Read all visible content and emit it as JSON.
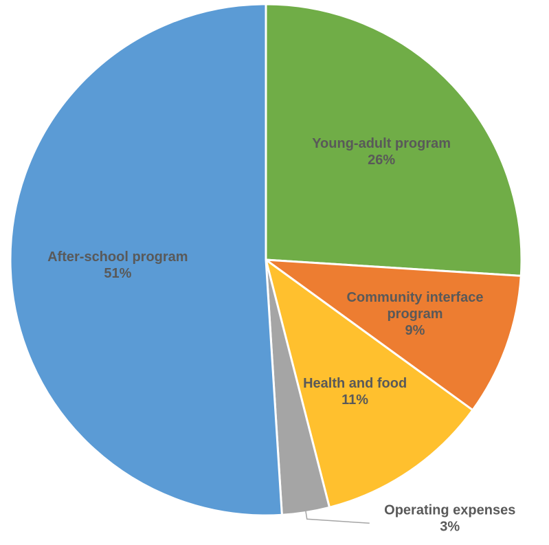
{
  "chart_data": {
    "type": "pie",
    "start_angle_deg": 0,
    "direction": "clockwise",
    "slices": [
      {
        "label": [
          "Young-adult program"
        ],
        "value": 26,
        "value_text": "26%",
        "color": "#70ad47"
      },
      {
        "label": [
          "Community interface",
          "program"
        ],
        "value": 9,
        "value_text": "9%",
        "color": "#ed7d31"
      },
      {
        "label": [
          "Health and food"
        ],
        "value": 11,
        "value_text": "11%",
        "color": "#ffc02e"
      },
      {
        "label": [
          "Operating expenses"
        ],
        "value": 3,
        "value_text": "3%",
        "color": "#a5a5a5",
        "label_outside": true
      },
      {
        "label": [
          "After-school program"
        ],
        "value": 51,
        "value_text": "51%",
        "color": "#5b9bd5"
      }
    ]
  }
}
